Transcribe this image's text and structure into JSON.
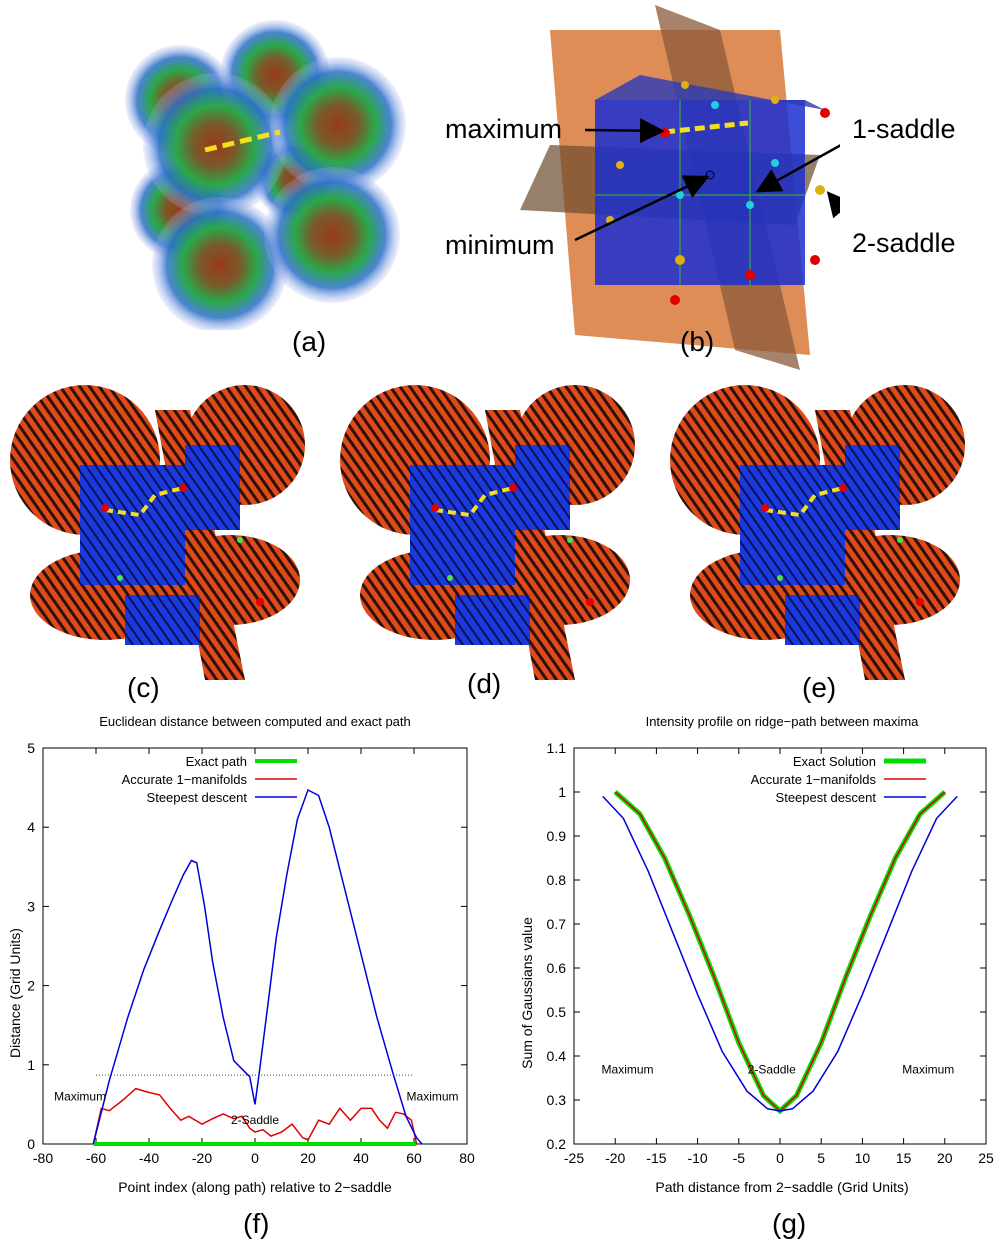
{
  "panels": {
    "a": "(a)",
    "b": "(b)",
    "c": "(c)",
    "d": "(d)",
    "e": "(e)",
    "f": "(f)",
    "g": "(g)"
  },
  "panel_b_labels": {
    "maximum": "maximum",
    "minimum": "minimum",
    "saddle1": "1-saddle",
    "saddle2": "2-saddle"
  },
  "colors": {
    "exact": "#00dd00",
    "accurate": "#e00000",
    "steepest": "#0000dd",
    "ridge": "#f2e020",
    "surface": "#e04a1a",
    "cube": "#1a2fd0",
    "slab": "#d9793a"
  },
  "chart_data": [
    {
      "type": "line",
      "title": "Euclidean distance between computed and exact path",
      "xlabel": "Point index (along path) relative to 2−saddle",
      "ylabel": "Distance (Grid Units)",
      "xlim": [
        -80,
        80
      ],
      "ylim": [
        0,
        5
      ],
      "xticks": [
        -80,
        -60,
        -40,
        -20,
        0,
        20,
        40,
        60,
        80
      ],
      "yticks": [
        0,
        1,
        2,
        3,
        4,
        5
      ],
      "legend_position": "top-left",
      "annotations": [
        "Maximum",
        "2-Saddle",
        "Maximum"
      ],
      "series": [
        {
          "name": "Exact path",
          "color": "#00dd00",
          "x": [
            -61,
            61
          ],
          "y": [
            0,
            0
          ]
        },
        {
          "name": "Accurate 1−manifolds",
          "color": "#e00000",
          "x": [
            -61,
            -58,
            -55,
            -50,
            -45,
            -40,
            -36,
            -32,
            -28,
            -25,
            -20,
            -16,
            -12,
            -8,
            -5,
            -2,
            0,
            3,
            6,
            10,
            14,
            18,
            20,
            24,
            28,
            32,
            36,
            40,
            44,
            47,
            50,
            53,
            56,
            59,
            61
          ],
          "y": [
            0,
            0.45,
            0.42,
            0.55,
            0.7,
            0.65,
            0.62,
            0.45,
            0.3,
            0.35,
            0.25,
            0.32,
            0.38,
            0.32,
            0.35,
            0.2,
            0.15,
            0.18,
            0.1,
            0.15,
            0.25,
            0.08,
            0.05,
            0.3,
            0.25,
            0.45,
            0.3,
            0.45,
            0.45,
            0.3,
            0.2,
            0.4,
            0.38,
            0.3,
            0
          ]
        },
        {
          "name": "Steepest descent",
          "color": "#0000dd",
          "x": [
            -61,
            -55,
            -48,
            -42,
            -36,
            -31,
            -27,
            -24,
            -22,
            -19,
            -16,
            -12,
            -8,
            -5,
            -2,
            0,
            2,
            5,
            8,
            12,
            16,
            20,
            24,
            28,
            34,
            40,
            46,
            52,
            57,
            61,
            63
          ],
          "y": [
            0,
            0.8,
            1.6,
            2.2,
            2.7,
            3.1,
            3.4,
            3.58,
            3.55,
            3.0,
            2.3,
            1.6,
            1.05,
            0.95,
            0.85,
            0.5,
            1.0,
            1.8,
            2.6,
            3.4,
            4.1,
            4.47,
            4.4,
            4.0,
            3.2,
            2.4,
            1.6,
            0.9,
            0.35,
            0.08,
            0
          ]
        },
        {
          "name": "",
          "color": "#444444",
          "style": "dotted",
          "x": [
            -60,
            60
          ],
          "y": [
            0.87,
            0.87
          ]
        }
      ]
    },
    {
      "type": "line",
      "title": "Intensity profile on ridge−path between maxima",
      "xlabel": "Path distance from 2−saddle (Grid Units)",
      "ylabel": "Sum of Gaussians value",
      "xlim": [
        -25,
        25
      ],
      "ylim": [
        0.2,
        1.1
      ],
      "xticks": [
        -25,
        -20,
        -15,
        -10,
        -5,
        0,
        5,
        10,
        15,
        20,
        25
      ],
      "yticks": [
        0.2,
        0.3,
        0.4,
        0.5,
        0.6,
        0.7,
        0.8,
        0.9,
        1,
        1.1
      ],
      "legend_position": "top-center",
      "annotations": [
        "Maximum",
        "2-Saddle",
        "Maximum"
      ],
      "series": [
        {
          "name": "Exact Solution",
          "color": "#00dd00",
          "x": [
            -20,
            -17,
            -14,
            -11,
            -8,
            -5,
            -2,
            0,
            2,
            5,
            8,
            11,
            14,
            17,
            20
          ],
          "y": [
            1.0,
            0.95,
            0.85,
            0.72,
            0.58,
            0.43,
            0.31,
            0.275,
            0.31,
            0.43,
            0.58,
            0.72,
            0.85,
            0.95,
            1.0
          ]
        },
        {
          "name": "Accurate 1−manifolds",
          "color": "#e00000",
          "x": [
            -20,
            -17,
            -14,
            -11,
            -8,
            -5,
            -2,
            0,
            2,
            5,
            8,
            11,
            14,
            17,
            20
          ],
          "y": [
            1.0,
            0.95,
            0.85,
            0.72,
            0.58,
            0.43,
            0.31,
            0.275,
            0.31,
            0.43,
            0.58,
            0.72,
            0.85,
            0.95,
            1.0
          ]
        },
        {
          "name": "Steepest descent",
          "color": "#0000dd",
          "x": [
            -21.5,
            -19,
            -16,
            -13,
            -10,
            -7,
            -4,
            -1.5,
            0,
            1.5,
            4,
            7,
            10,
            13,
            16,
            19,
            21.5
          ],
          "y": [
            0.99,
            0.94,
            0.82,
            0.68,
            0.54,
            0.41,
            0.32,
            0.28,
            0.275,
            0.28,
            0.32,
            0.41,
            0.54,
            0.68,
            0.82,
            0.94,
            0.99
          ]
        }
      ]
    }
  ]
}
